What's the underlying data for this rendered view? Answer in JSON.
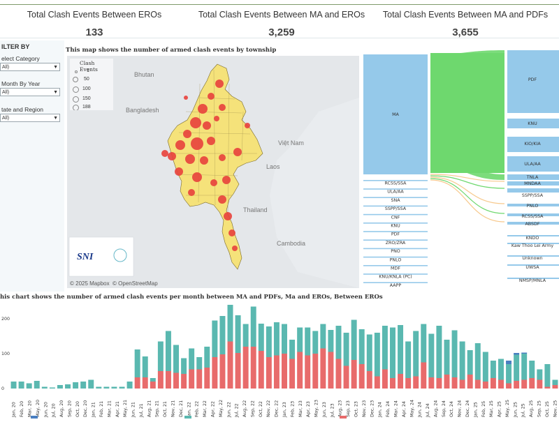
{
  "kpis": [
    {
      "title": "Total Clash Events Between EROs",
      "value": "133"
    },
    {
      "title": "Total Clash Events Between MA and EROs",
      "value": "3,259"
    },
    {
      "title": "Total Clash Events Between MA and PDFs",
      "value": "3,655"
    }
  ],
  "sidebar": {
    "title": "ILTER BY",
    "filters": [
      {
        "label": "elect Category",
        "value": "All)"
      },
      {
        "label": "Month By Year",
        "value": "All)"
      },
      {
        "label": "tate and Region",
        "value": "All)"
      }
    ]
  },
  "map": {
    "title": "This map shows the number of armed clash events by township",
    "legend_title": "Clash Events",
    "legend_items": [
      "1",
      "50",
      "100",
      "150",
      "188"
    ],
    "place_labels": [
      "Bhutan",
      "Bangladesh",
      "Việt Nam",
      "Laos",
      "Thailand",
      "Cambodia"
    ],
    "attribution": "© 2025 Mapbox  © OpenStreetMap",
    "logo_text": "SNI",
    "colors": {
      "fill": "#f5e27a",
      "border": "#7a6a2a",
      "marker": "#e8413c",
      "background": "#e9ecef"
    }
  },
  "sankey": {
    "left_nodes": [
      "MA",
      "RCSS/SSA",
      "ULA/AA",
      "SNA",
      "SSPP/SSA",
      "CNF",
      "KNU",
      "PDF",
      "ZRO/ZRA",
      "PNO",
      "PNLO",
      "MDF",
      "KNU/KNLA (PC)",
      "AAPP"
    ],
    "right_nodes": [
      "PDF",
      "KNU",
      "KIO/KIA",
      "ULA/AA",
      "TNLA",
      "MNDAA",
      "SSPP/SSA",
      "PNLO",
      "RCSS/SSA",
      "ABSDF",
      "KNDO",
      "Kaw Thoo Lei Army",
      "Unknown",
      "UWSA",
      "NMSP/MNLA"
    ],
    "colors": {
      "node": "#95c9ea",
      "flow": "#6ed86e",
      "flow2": "#f7c98d"
    }
  },
  "chart": {
    "title": "his chart shows the number of armed clash events per month between MA and PDFs, Ma and EROs, Between EROs",
    "y_ticks": [
      "200",
      "100",
      "0"
    ]
  },
  "chart_data": {
    "type": "bar",
    "stacked": true,
    "categories": [
      "Jan, 20",
      "Feb, 20",
      "Mar, 20",
      "Apr, 20",
      "May, 20",
      "Jun, 20",
      "Jul, 20",
      "Aug, 20",
      "Sep, 20",
      "Oct, 20",
      "Nov, 20",
      "Dec, 20",
      "Jan, 21",
      "Feb, 21",
      "Mar, 21",
      "Apr, 21",
      "May, 21",
      "Jun, 21",
      "Jul, 21",
      "Aug, 21",
      "Sep, 21",
      "Oct, 21",
      "Nov, 21",
      "Dec, 21",
      "Jan, 22",
      "Feb, 22",
      "Mar, 22",
      "Apr, 22",
      "May, 22",
      "Jun, 22",
      "Jul, 22",
      "Aug, 22",
      "Sep, 22",
      "Oct, 22",
      "Nov, 22",
      "Dec, 22",
      "Jan, 23",
      "Feb, 23",
      "Mar, 23",
      "Apr, 23",
      "May, 23",
      "Jun, 23",
      "Jul, 23",
      "Aug, 23",
      "Sep, 23",
      "Oct, 23",
      "Nov, 23",
      "Dec, 23",
      "Jan, 24",
      "Feb, 24",
      "Mar, 24",
      "Apr, 24",
      "May, 24",
      "Jun, 24",
      "Jul, 24",
      "Aug, 24",
      "Sep, 24",
      "Oct, 24",
      "Nov, 24",
      "Dec, 24",
      "Jan, 25",
      "Feb, 25",
      "Mar, 25",
      "Apr, 25",
      "May, 25",
      "Jun, 25",
      "Jul, 25",
      "Aug, 25",
      "Sep, 25",
      "Oct, 25",
      "Nov, 25"
    ],
    "x_tick_labels": [
      "Jan, 20",
      "Feb, 20",
      "Mar, 20",
      "May, 20",
      "Jun, 20",
      "Jul, 20",
      "Aug, 20",
      "Sep, 20",
      "Oct, 20",
      "Dec, 20",
      "Jan, 21",
      "Feb, 21",
      "Mar, 21",
      "Apr, 21",
      "May, 21",
      "Jun, 21",
      "Jul, 21",
      "Aug, 21",
      "Sep, 21",
      "Oct, 21",
      "Nov, 21",
      "Dec, 21",
      "Jan, 22",
      "Feb, 22",
      "Mar, 22",
      "Apr, 22",
      "May, 22",
      "Jun, 22",
      "Jul, 22",
      "Aug, 22",
      "Sep, 22",
      "Oct, 22",
      "Nov, 22",
      "Dec, 22",
      "Jan, 23",
      "Feb, 23",
      "Mar, 23",
      "Apr, 23",
      "May, 23",
      "Jun, 23",
      "Jul, 23",
      "Aug, 23",
      "Sep, 23",
      "Oct, 23",
      "Nov, 23",
      "Dec, 23",
      "Jan, 24",
      "Feb, 24",
      "Mar, 24",
      "Apr, 24",
      "May, 24",
      "Jun, 24",
      "Jul, 24",
      "Aug, 24",
      "Sep, 24",
      "Oct, 24",
      "Nov, 24",
      "Dec, 24",
      "Jan, 25",
      "Feb, 25",
      "Mar, 25",
      "Apr, 25",
      "May, 25",
      "Jun, 25",
      "Jul, 25",
      "Aug, 25",
      "Sep, 25",
      "Oct, 25",
      "Nov, 25"
    ],
    "series": [
      {
        "color": "#e86b6b",
        "values": [
          0,
          0,
          0,
          0,
          0,
          0,
          0,
          0,
          0,
          0,
          0,
          0,
          0,
          0,
          0,
          0,
          32,
          32,
          20,
          50,
          50,
          45,
          42,
          55,
          55,
          60,
          90,
          98,
          135,
          102,
          120,
          120,
          108,
          90,
          95,
          100,
          85,
          105,
          95,
          100,
          115,
          105,
          85,
          65,
          82,
          70,
          50,
          35,
          55,
          30,
          42,
          30,
          35,
          75,
          32,
          30,
          40,
          32,
          25,
          40,
          25,
          20,
          30,
          25,
          15,
          22,
          25,
          30,
          25,
          5,
          10
        ]
      },
      {
        "color": "#5ab8b0",
        "values": [
          20,
          20,
          15,
          22,
          5,
          3,
          10,
          12,
          18,
          20,
          25,
          5,
          5,
          5,
          5,
          20,
          80,
          60,
          10,
          85,
          115,
          80,
          45,
          60,
          35,
          60,
          105,
          110,
          105,
          108,
          65,
          115,
          78,
          88,
          95,
          85,
          55,
          70,
          80,
          65,
          70,
          63,
          95,
          95,
          115,
          100,
          105,
          125,
          125,
          145,
          140,
          105,
          130,
          110,
          125,
          150,
          100,
          135,
          110,
          70,
          105,
          85,
          50,
          60,
          55,
          75,
          75,
          50,
          30,
          65,
          15
        ]
      },
      {
        "color": "#4a7fc1",
        "values": [
          0,
          0,
          0,
          0,
          0,
          0,
          0,
          0,
          0,
          0,
          0,
          0,
          0,
          0,
          0,
          0,
          0,
          0,
          0,
          0,
          0,
          0,
          0,
          0,
          0,
          0,
          0,
          0,
          0,
          0,
          0,
          0,
          0,
          0,
          0,
          0,
          0,
          0,
          0,
          0,
          0,
          0,
          0,
          0,
          0,
          0,
          0,
          0,
          0,
          0,
          0,
          0,
          0,
          0,
          0,
          0,
          0,
          0,
          0,
          0,
          0,
          0,
          0,
          0,
          10,
          5,
          3,
          0,
          0,
          0,
          0
        ]
      }
    ],
    "ylim": [
      0,
      230
    ],
    "ytick_values": [
      0,
      100,
      200
    ],
    "grid": false,
    "legend": "bottom"
  }
}
